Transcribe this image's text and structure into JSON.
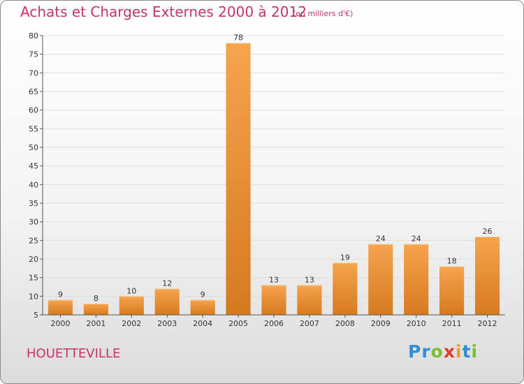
{
  "header": {
    "title": "Achats et Charges Externes 2000 à 2012",
    "unit": "(en milliers d'€)"
  },
  "footer": {
    "commune": "HOUETTEVILLE",
    "brand": [
      "P",
      "r",
      "o",
      "x",
      "i",
      "t",
      "i"
    ],
    "brand_colors": [
      "#2f8fd6",
      "#2f8fd6",
      "#7cbf2e",
      "#e43a2b",
      "#f0a020",
      "#2f8fd6",
      "#7cbf2e"
    ]
  },
  "colors": {
    "bar_light": "#f6a44e",
    "bar_dark": "#d67a20",
    "grid": "#dedede",
    "axis": "#555555",
    "accent": "#c8336e"
  },
  "chart_data": {
    "type": "bar",
    "title": "Achats et Charges Externes 2000 à 2012",
    "subtitle": "(en milliers d'€)",
    "categories": [
      "2000",
      "2001",
      "2002",
      "2003",
      "2004",
      "2005",
      "2006",
      "2007",
      "2008",
      "2009",
      "2010",
      "2011",
      "2012"
    ],
    "values": [
      9,
      8,
      10,
      12,
      9,
      78,
      13,
      13,
      19,
      24,
      24,
      18,
      26
    ],
    "ylim": [
      5,
      80
    ],
    "yticks": [
      5,
      10,
      15,
      20,
      25,
      30,
      35,
      40,
      45,
      50,
      55,
      60,
      65,
      70,
      75,
      80
    ],
    "grid": true,
    "xlabel": "",
    "ylabel": ""
  }
}
